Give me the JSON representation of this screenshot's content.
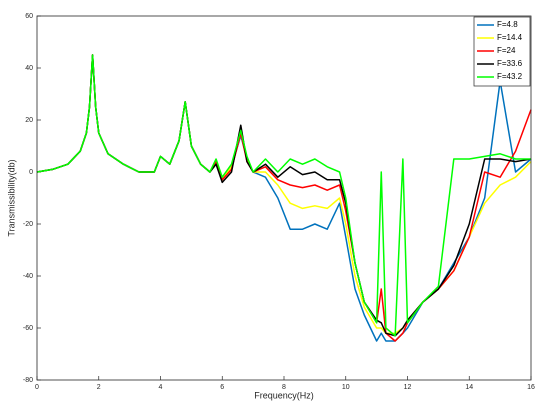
{
  "chart_data": {
    "type": "line",
    "x_label": "Frequency(Hz)",
    "y_label": "Transmissibility(db)",
    "x": [
      0,
      0.5,
      1,
      1.4,
      1.6,
      1.7,
      1.8,
      1.9,
      2,
      2.3,
      2.8,
      3.3,
      3.8,
      4,
      4.3,
      4.6,
      4.8,
      5,
      5.3,
      5.6,
      5.8,
      6,
      6.3,
      6.6,
      6.8,
      7,
      7.4,
      7.8,
      8.2,
      8.6,
      9,
      9.4,
      9.8,
      10,
      10.3,
      10.6,
      11,
      11.15,
      11.3,
      11.6,
      11.85,
      12,
      12.5,
      13,
      13.5,
      14,
      14.5,
      15,
      15.5,
      16
    ],
    "series": [
      {
        "name": "F=4.8",
        "color": "#0072bd",
        "values": [
          0,
          1,
          3,
          8,
          15,
          25,
          45,
          25,
          15,
          7,
          3,
          0,
          0,
          6,
          3,
          12,
          27,
          10,
          3,
          0,
          3,
          -3,
          2,
          14,
          5,
          0,
          -2,
          -10,
          -22,
          -22,
          -20,
          -22,
          -12,
          -25,
          -45,
          -55,
          -65,
          -62,
          -65,
          -65,
          -62,
          -60,
          -50,
          -45,
          -35,
          -25,
          -10,
          35,
          0,
          5
        ]
      },
      {
        "name": "F=14.4",
        "color": "#ffff00",
        "values": [
          0,
          1,
          3,
          8,
          15,
          25,
          45,
          25,
          15,
          7,
          3,
          0,
          0,
          6,
          3,
          12,
          27,
          10,
          3,
          0,
          3,
          -3,
          2,
          15,
          5,
          0,
          0,
          -5,
          -12,
          -14,
          -13,
          -14,
          -10,
          -20,
          -40,
          -52,
          -60,
          -60,
          -62,
          -62,
          -60,
          -57,
          -50,
          -45,
          -38,
          -25,
          -12,
          -5,
          -2,
          4
        ]
      },
      {
        "name": "F=24",
        "color": "#ff0000",
        "values": [
          0,
          1,
          3,
          8,
          15,
          25,
          45,
          25,
          15,
          7,
          3,
          0,
          0,
          6,
          3,
          12,
          27,
          10,
          3,
          0,
          4,
          -3,
          1,
          15,
          4,
          0,
          2,
          -3,
          -5,
          -6,
          -5,
          -7,
          -5,
          -15,
          -35,
          -50,
          -58,
          -45,
          -62,
          -65,
          -62,
          -58,
          -50,
          -45,
          -38,
          -25,
          0,
          -2,
          8,
          24
        ]
      },
      {
        "name": "F=33.6",
        "color": "#000000",
        "values": [
          0,
          1,
          3,
          8,
          15,
          25,
          45,
          25,
          15,
          7,
          3,
          0,
          0,
          6,
          3,
          12,
          27,
          10,
          3,
          0,
          3,
          -4,
          0,
          18,
          4,
          0,
          3,
          -2,
          2,
          -1,
          0,
          -3,
          -3,
          -12,
          -35,
          -50,
          -57,
          -58,
          -62,
          -63,
          -60,
          -57,
          -50,
          -45,
          -36,
          -20,
          5,
          5,
          4,
          5
        ]
      },
      {
        "name": "F=43.2",
        "color": "#00ff00",
        "values": [
          0,
          1,
          3,
          8,
          15,
          25,
          45,
          25,
          15,
          7,
          3,
          0,
          0,
          6,
          3,
          12,
          27,
          10,
          3,
          0,
          5,
          -2,
          3,
          16,
          6,
          0,
          5,
          0,
          5,
          3,
          5,
          2,
          0,
          -10,
          -35,
          -50,
          -58,
          0,
          -60,
          -63,
          5,
          -58,
          -50,
          -44,
          5,
          5,
          6,
          7,
          5,
          5
        ]
      }
    ],
    "xlim": [
      0,
      16
    ],
    "xticks": [
      0,
      2,
      4,
      6,
      8,
      10,
      12,
      14,
      16
    ],
    "ylim": [
      -80,
      60
    ],
    "yticks": [
      -80,
      -60,
      -40,
      -20,
      0,
      20,
      40,
      60
    ],
    "legend": "upper right"
  }
}
